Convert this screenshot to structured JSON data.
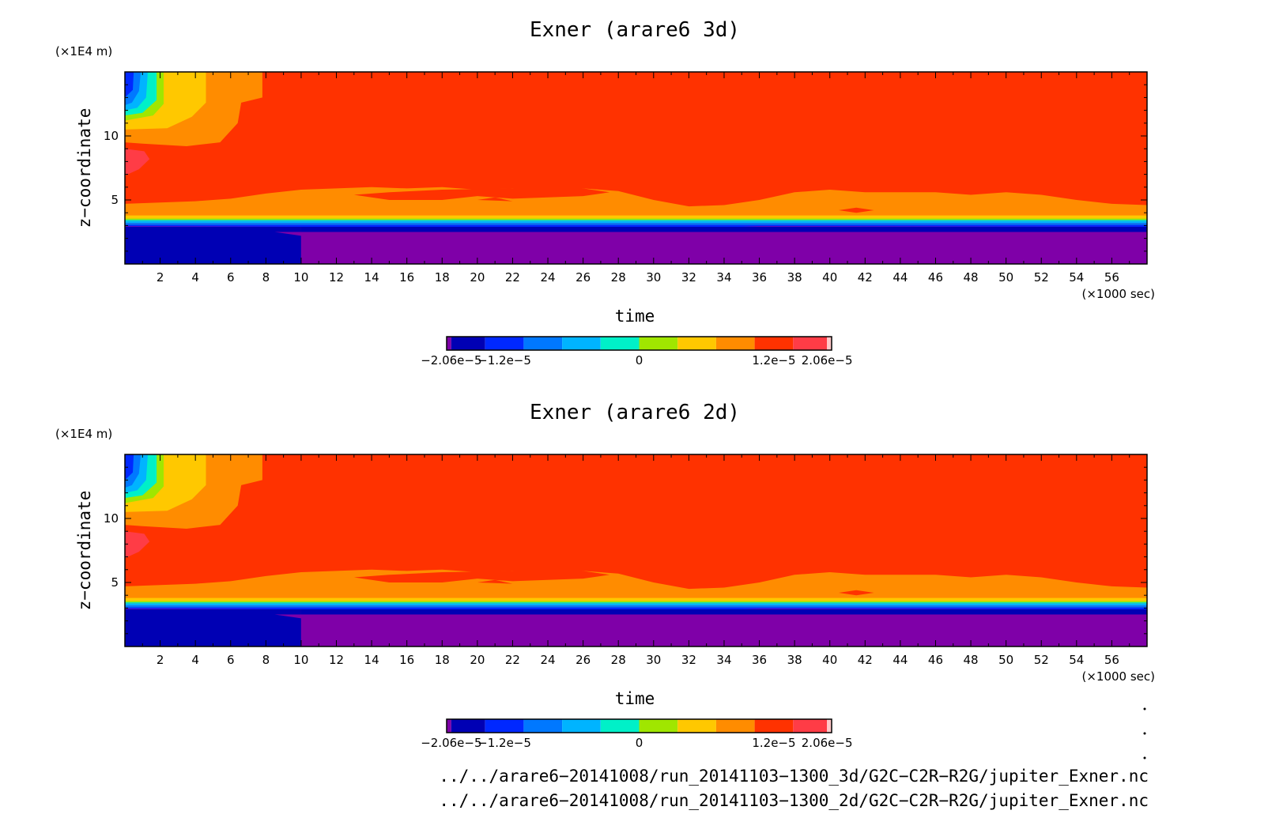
{
  "chart_data": [
    {
      "type": "heatmap",
      "title": "Exner (arare6 3d)",
      "xlabel": "time",
      "x_unit": "(×1000 sec)",
      "ylabel": "z−coordinate",
      "y_unit": "(×1E4 m)",
      "xlim": [
        0,
        58
      ],
      "ylim": [
        0,
        15
      ],
      "x_ticks": [
        "2",
        "4",
        "6",
        "8",
        "10",
        "12",
        "14",
        "16",
        "18",
        "20",
        "22",
        "24",
        "26",
        "28",
        "30",
        "32",
        "34",
        "36",
        "38",
        "40",
        "42",
        "44",
        "46",
        "48",
        "50",
        "52",
        "54",
        "56"
      ],
      "y_ticks": [
        "5",
        "10"
      ],
      "colorbar": {
        "range": [
          -2.06e-05,
          2.06e-05
        ],
        "tick_labels": [
          "−2.06e−5",
          "−1.2e−5",
          "0",
          "1.2e−5",
          "2.06e−5"
        ],
        "colors": [
          "#7f00a8",
          "#0000b4",
          "#0028ff",
          "#0078ff",
          "#00b4ff",
          "#00f0c8",
          "#a0e600",
          "#ffc800",
          "#ff8c00",
          "#ff3200",
          "#ff3c46",
          "#ffc8c8"
        ]
      },
      "regions": [
        {
          "level": "1.2e-5 to 1.6e-5",
          "color": "#ff3200",
          "description": "dominant upper layer above ~4.5"
        },
        {
          "level": "0.8e-5 to 1.2e-5",
          "color": "#ff8c00",
          "description": "wavy band ~3.8 to ~6"
        },
        {
          "level": "-2.06e-5 to -1.6e-5",
          "color": "#0000b4",
          "description": "lower layer t<10"
        },
        {
          "level": "below -2.06e-5",
          "color": "#7f00a8",
          "description": "lower layer t>10"
        }
      ]
    },
    {
      "type": "heatmap",
      "title": "Exner (arare6 2d)",
      "xlabel": "time",
      "x_unit": "(×1000 sec)",
      "ylabel": "z−coordinate",
      "y_unit": "(×1E4 m)",
      "xlim": [
        0,
        58
      ],
      "ylim": [
        0,
        15
      ],
      "x_ticks": [
        "2",
        "4",
        "6",
        "8",
        "10",
        "12",
        "14",
        "16",
        "18",
        "20",
        "22",
        "24",
        "26",
        "28",
        "30",
        "32",
        "34",
        "36",
        "38",
        "40",
        "42",
        "44",
        "46",
        "48",
        "50",
        "52",
        "54",
        "56"
      ],
      "y_ticks": [
        "5",
        "10"
      ],
      "colorbar": {
        "range": [
          -2.06e-05,
          2.06e-05
        ],
        "tick_labels": [
          "−2.06e−5",
          "−1.2e−5",
          "0",
          "1.2e−5",
          "2.06e−5"
        ],
        "colors": [
          "#7f00a8",
          "#0000b4",
          "#0028ff",
          "#0078ff",
          "#00b4ff",
          "#00f0c8",
          "#a0e600",
          "#ffc800",
          "#ff8c00",
          "#ff3200",
          "#ff3c46",
          "#ffc8c8"
        ]
      }
    }
  ],
  "footer": {
    "path_3d": "../../arare6−20141008/run_20141103−1300_3d/G2C−C2R−R2G/jupiter_Exner.nc",
    "path_2d": "../../arare6−20141008/run_20141103−1300_2d/G2C−C2R−R2G/jupiter_Exner.nc"
  }
}
